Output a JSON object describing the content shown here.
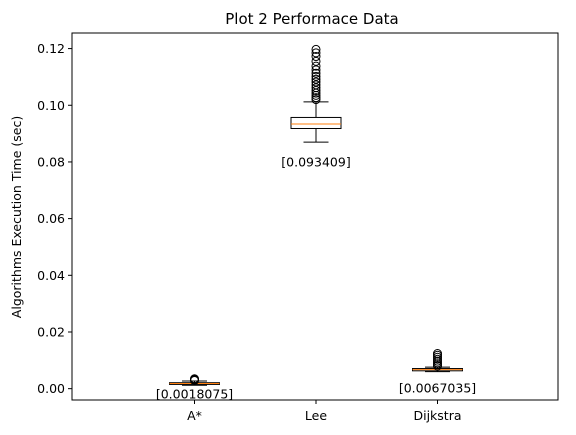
{
  "chart_data": {
    "type": "box",
    "title": "Plot 2 Performace Data",
    "xlabel": "",
    "ylabel": "Algorithms Execution Time (sec)",
    "ylim": [
      -0.004,
      0.1255
    ],
    "yticks": [
      0.0,
      0.02,
      0.04,
      0.06,
      0.08,
      0.1,
      0.12
    ],
    "ytick_labels": [
      "0.00",
      "0.02",
      "0.04",
      "0.06",
      "0.08",
      "0.10",
      "0.12"
    ],
    "grid": false,
    "categories": [
      "A*",
      "Lee",
      "Dijkstra"
    ],
    "boxes": [
      {
        "category": "A*",
        "whisker_low": 0.0012,
        "q1": 0.0015,
        "median": 0.0018075,
        "q3": 0.0021,
        "whisker_high": 0.0027,
        "outliers": [
          0.0029,
          0.0031,
          0.0033,
          0.0035
        ]
      },
      {
        "category": "Lee",
        "whisker_low": 0.087,
        "q1": 0.0918,
        "median": 0.093409,
        "q3": 0.0957,
        "whisker_high": 0.1012,
        "outliers": [
          0.102,
          0.1027,
          0.1035,
          0.1043,
          0.1052,
          0.1062,
          0.1072,
          0.1082,
          0.1092,
          0.1102,
          0.1113,
          0.1125,
          0.1138,
          0.1155,
          0.1172,
          0.1185,
          0.1197
        ]
      },
      {
        "category": "Dijkstra",
        "whisker_low": 0.006,
        "q1": 0.0063,
        "median": 0.0067035,
        "q3": 0.0071,
        "whisker_high": 0.0076,
        "outliers": [
          0.008,
          0.0085,
          0.0091,
          0.0097,
          0.0104,
          0.0111,
          0.0118,
          0.0124
        ]
      }
    ],
    "annotations": [
      {
        "category": "A*",
        "text": "[0.0018075]",
        "y": -0.0018
      },
      {
        "category": "Lee",
        "text": "[0.093409]",
        "y": 0.08
      },
      {
        "category": "Dijkstra",
        "text": "[0.0067035]",
        "y": 0.0002
      }
    ],
    "colors": {
      "box": "#000000",
      "median": "#ff7f0e",
      "outlier": "#000000"
    }
  }
}
